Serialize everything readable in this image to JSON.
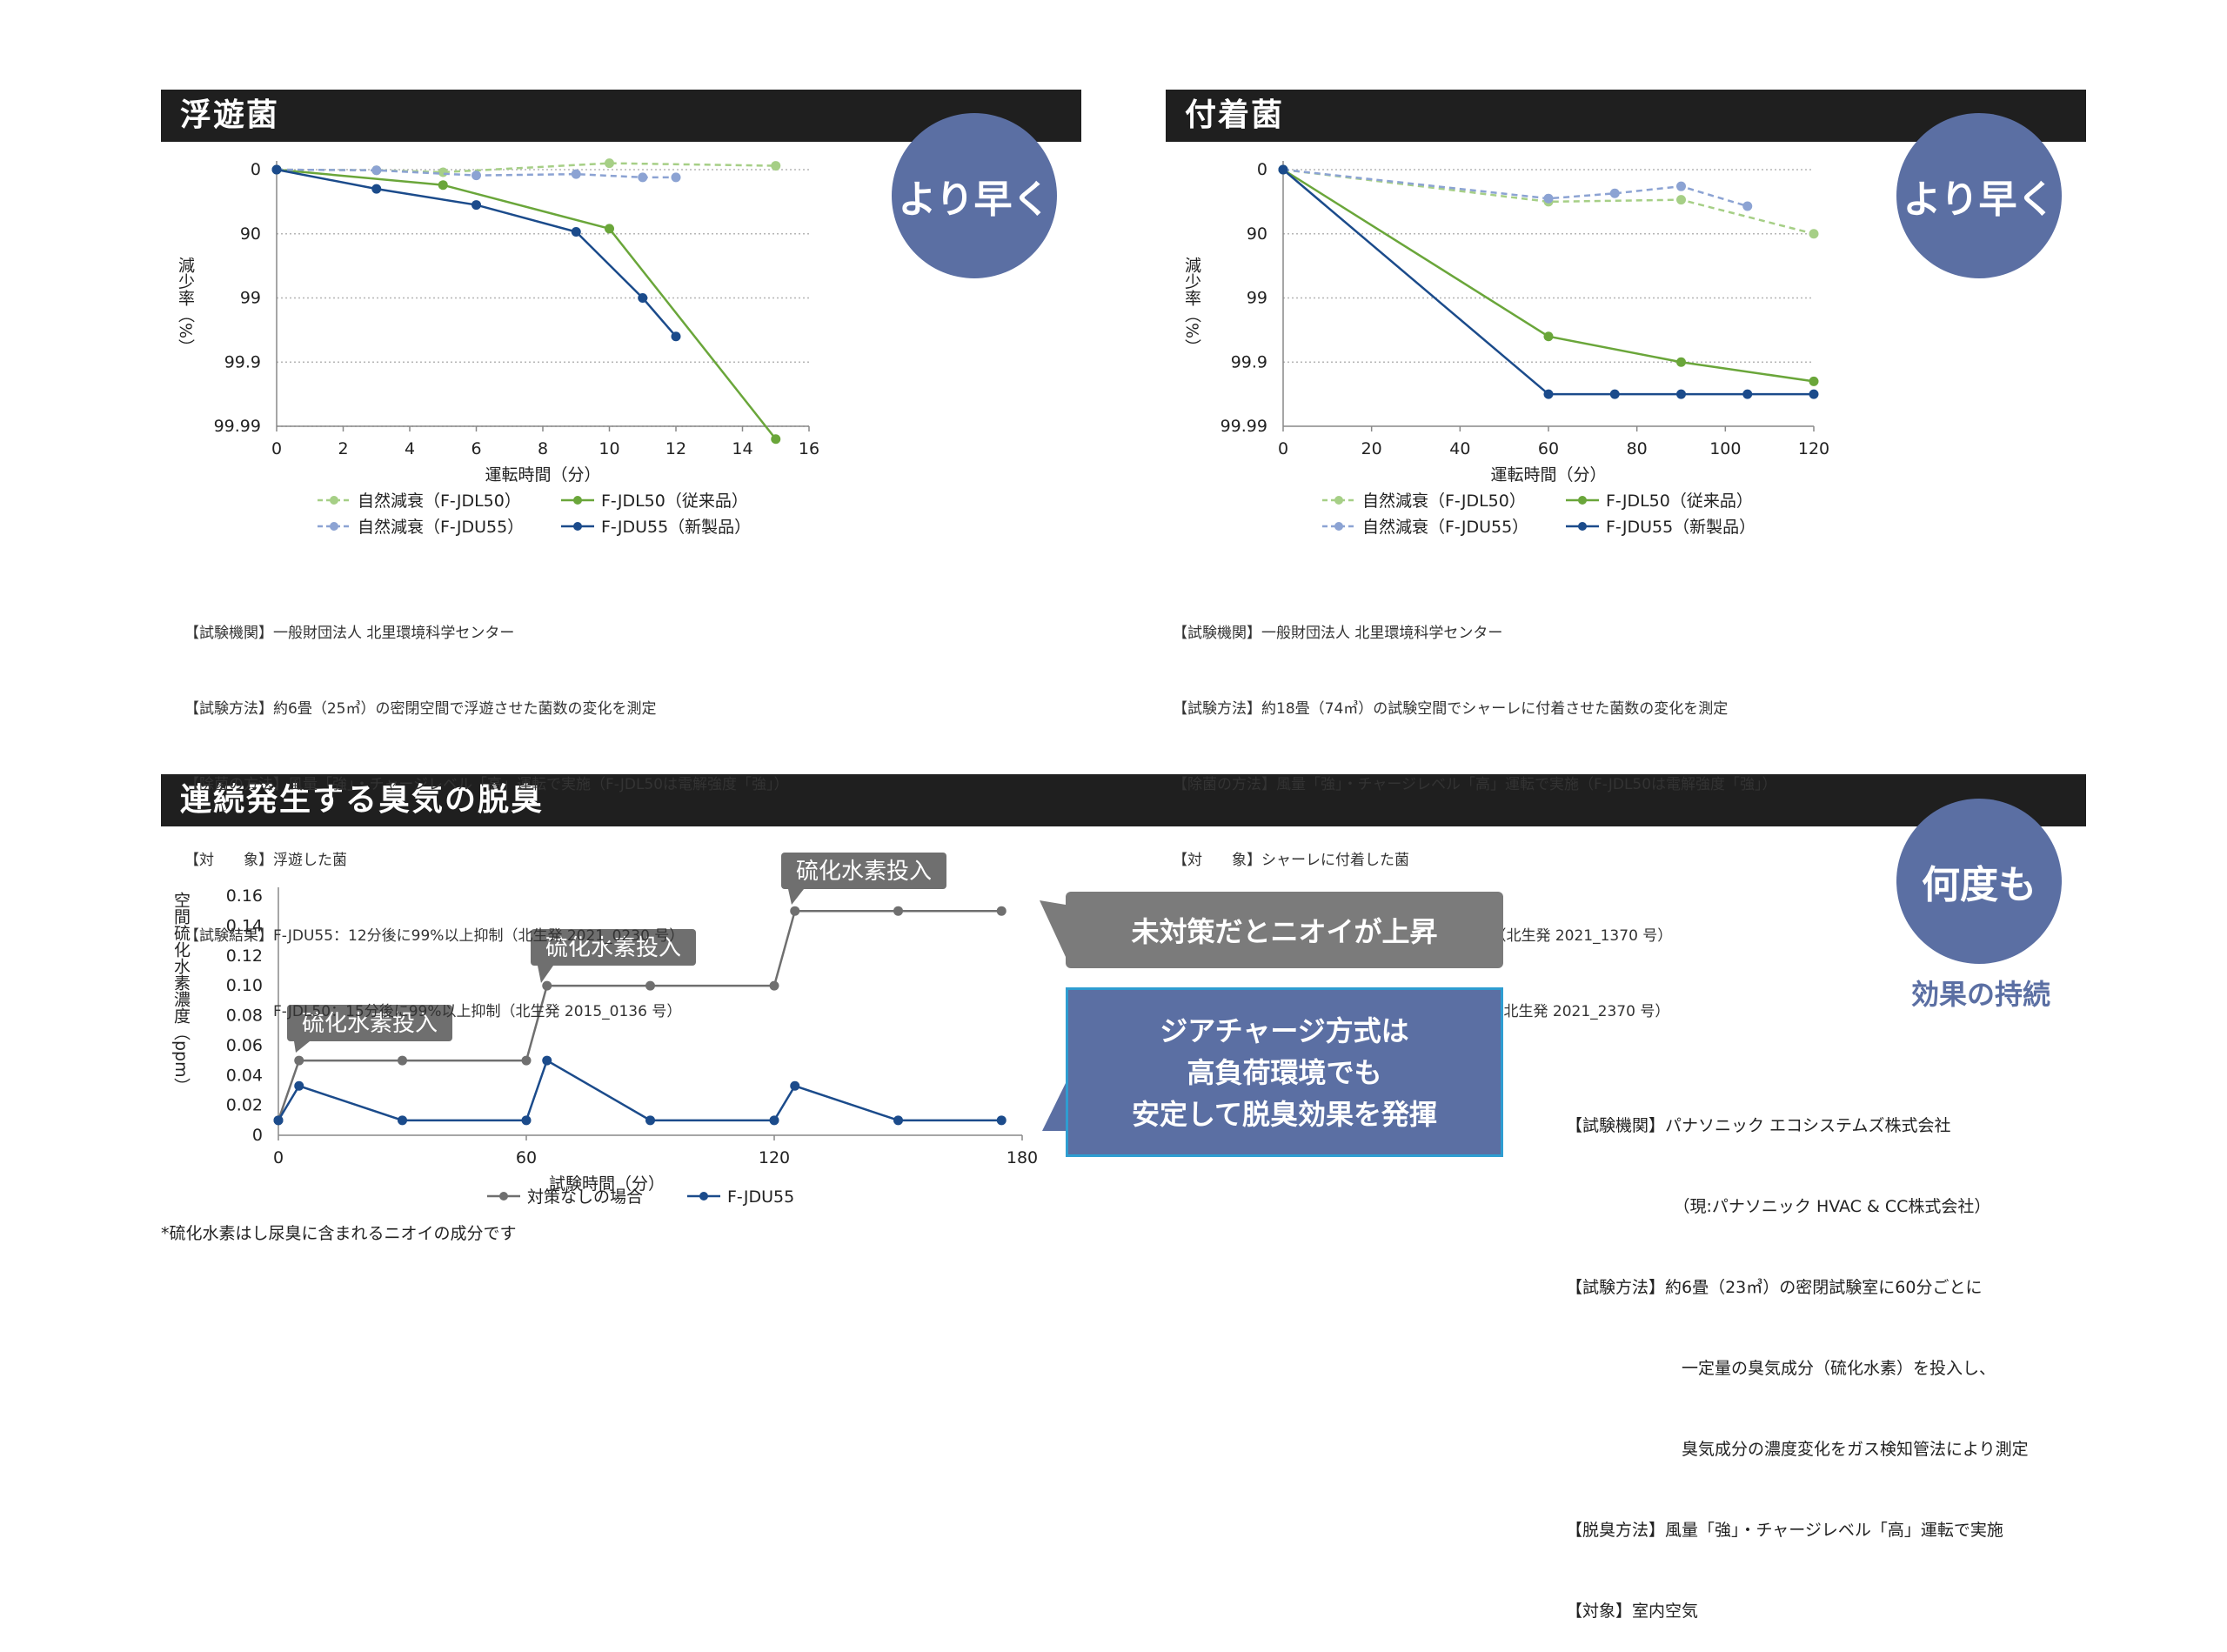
{
  "sections": {
    "floating": {
      "title": "浮遊菌",
      "badge": "より早く"
    },
    "adhered": {
      "title": "付着菌",
      "badge": "より早く"
    },
    "odor": {
      "title": "連続発生する臭気の脱臭",
      "badge": "何度も",
      "badge_sub": "効果の持続"
    }
  },
  "chart_data": [
    {
      "type": "line",
      "ylabel": "減少率（%）",
      "xlabel": "運転時間（分）",
      "x_ticks": [
        0,
        2,
        4,
        6,
        8,
        10,
        12,
        14,
        16
      ],
      "xlim": [
        0,
        16
      ],
      "y_ticks": [
        "0",
        "90",
        "99",
        "99.9",
        "99.99"
      ],
      "y_scale": "log-reduction",
      "grid": true,
      "series": [
        {
          "name": "自然減衰（F-JDL50）",
          "color": "#a6cf86",
          "dashed": true,
          "points": [
            [
              0,
              0
            ],
            [
              3,
              0.01
            ],
            [
              5,
              0.04
            ],
            [
              10,
              -0.1
            ],
            [
              15,
              -0.06
            ]
          ]
        },
        {
          "name": "F-JDL50（従来品）",
          "color": "#6aa63a",
          "dashed": false,
          "points": [
            [
              0,
              0
            ],
            [
              5,
              0.24
            ],
            [
              10,
              0.92
            ],
            [
              15,
              4.2
            ]
          ]
        },
        {
          "name": "自然減衰（F-JDU55）",
          "color": "#8ca3d3",
          "dashed": true,
          "points": [
            [
              0,
              0
            ],
            [
              3,
              0.01
            ],
            [
              6,
              0.09
            ],
            [
              9,
              0.07
            ],
            [
              11,
              0.12
            ],
            [
              12,
              0.12
            ]
          ]
        },
        {
          "name": "F-JDU55（新製品）",
          "color": "#1b4b8b",
          "dashed": false,
          "points": [
            [
              0,
              0
            ],
            [
              3,
              0.3
            ],
            [
              6,
              0.55
            ],
            [
              9,
              0.97
            ],
            [
              11,
              2.0
            ],
            [
              12,
              2.6
            ]
          ]
        }
      ]
    },
    {
      "type": "line",
      "ylabel": "減少率（%）",
      "xlabel": "運転時間（分）",
      "x_ticks": [
        0,
        20,
        40,
        60,
        80,
        100,
        120
      ],
      "xlim": [
        0,
        120
      ],
      "y_ticks": [
        "0",
        "90",
        "99",
        "99.9",
        "99.99"
      ],
      "y_scale": "log-reduction",
      "grid": true,
      "series": [
        {
          "name": "自然減衰（F-JDL50）",
          "color": "#a6cf86",
          "dashed": true,
          "points": [
            [
              0,
              0
            ],
            [
              60,
              0.5
            ],
            [
              90,
              0.47
            ],
            [
              120,
              1.0
            ]
          ]
        },
        {
          "name": "F-JDL50（従来品）",
          "color": "#6aa63a",
          "dashed": false,
          "points": [
            [
              0,
              0
            ],
            [
              60,
              2.6
            ],
            [
              90,
              3.0
            ],
            [
              120,
              3.3
            ]
          ]
        },
        {
          "name": "自然減衰（F-JDU55）",
          "color": "#8ca3d3",
          "dashed": true,
          "points": [
            [
              0,
              0
            ],
            [
              60,
              0.45
            ],
            [
              75,
              0.37
            ],
            [
              90,
              0.26
            ],
            [
              105,
              0.57
            ]
          ]
        },
        {
          "name": "F-JDU55（新製品）",
          "color": "#1b4b8b",
          "dashed": false,
          "points": [
            [
              0,
              0
            ],
            [
              60,
              3.5
            ],
            [
              75,
              3.5
            ],
            [
              90,
              3.5
            ],
            [
              105,
              3.5
            ],
            [
              120,
              3.5
            ]
          ]
        }
      ]
    },
    {
      "type": "line",
      "ylabel": "空間硫化水素濃度（ppm）",
      "xlabel": "試験時間（分）",
      "x_ticks": [
        0,
        60,
        120,
        180
      ],
      "xlim": [
        0,
        180
      ],
      "y_ticks": [
        "0",
        "0.02",
        "0.04",
        "0.06",
        "0.08",
        "0.10",
        "0.12",
        "0.14",
        "0.16"
      ],
      "ylim": [
        0,
        0.16
      ],
      "grid": false,
      "annotations": [
        "硫化水素投入",
        "硫化水素投入",
        "硫化水素投入"
      ],
      "series": [
        {
          "name": "対策なしの場合",
          "color": "#6f6f6f",
          "dashed": false,
          "points": [
            [
              0,
              0.01
            ],
            [
              5,
              0.05
            ],
            [
              30,
              0.05
            ],
            [
              60,
              0.05
            ],
            [
              65,
              0.1
            ],
            [
              90,
              0.1
            ],
            [
              120,
              0.1
            ],
            [
              125,
              0.15
            ],
            [
              150,
              0.15
            ],
            [
              175,
              0.15
            ]
          ]
        },
        {
          "name": "F-JDU55",
          "color": "#1b4b8b",
          "dashed": false,
          "points": [
            [
              0,
              0.01
            ],
            [
              5,
              0.033
            ],
            [
              30,
              0.01
            ],
            [
              60,
              0.01
            ],
            [
              65,
              0.05
            ],
            [
              90,
              0.01
            ],
            [
              120,
              0.01
            ],
            [
              125,
              0.033
            ],
            [
              150,
              0.01
            ],
            [
              175,
              0.01
            ]
          ]
        }
      ]
    }
  ],
  "notes_floating": [
    "【試験機関】一般財団法人 北里環境科学センター",
    "【試験方法】約6畳（25㎥）の密閉空間で浮遊させた菌数の変化を測定",
    "【除菌の方法】風量「強」・チャージレベル「高」運転で実施（F-JDL50は電解強度「強」）",
    "【対　　象】浮遊した菌",
    "【試験結果】F-JDU55：12分後に99%以上抑制（北生発 2021_0230 号）",
    "　　　　　　F-JDL50：15分後に99%以上抑制（北生発 2015_0136 号）"
  ],
  "notes_adhered": [
    "【試験機関】一般財団法人 北里環境科学センター",
    "【試験方法】約18畳（74㎥）の試験空間でシャーレに付着させた菌数の変化を測定",
    "【除菌の方法】風量「強」・チャージレベル「高」運転で実施（F-JDL50は電解強度「強」）",
    "【対　　象】シャーレに付着した菌",
    "【試験結果】F-JDU55：60分後に99%以上抑制（北生発 2021_1370 号）",
    "　　　　　　F-JDL50：90分後に99%以上抑制（北生発 2021_2370 号）"
  ],
  "callouts": {
    "untreated": "未対策だとニオイが上昇",
    "jiachage": "ジアチャージ方式は\n高負荷環境でも\n安定して脱臭効果を発揮"
  },
  "footnote": "*硫化水素はし尿臭に含まれるニオイの成分です",
  "notes_odor": [
    "【試験機関】パナソニック エコシステムズ株式会社",
    "　　　　　　　（現:パナソニック HVAC & CC株式会社）",
    "【試験方法】約6畳（23㎥）の密閉試験室に60分ごとに",
    "　　　　　　　一定量の臭気成分（硫化水素）を投入し、",
    "　　　　　　　臭気成分の濃度変化をガス検知管法により測定",
    "【脱臭方法】風量「強」・チャージレベル「高」運転で実施",
    "【対象】室内空気"
  ]
}
